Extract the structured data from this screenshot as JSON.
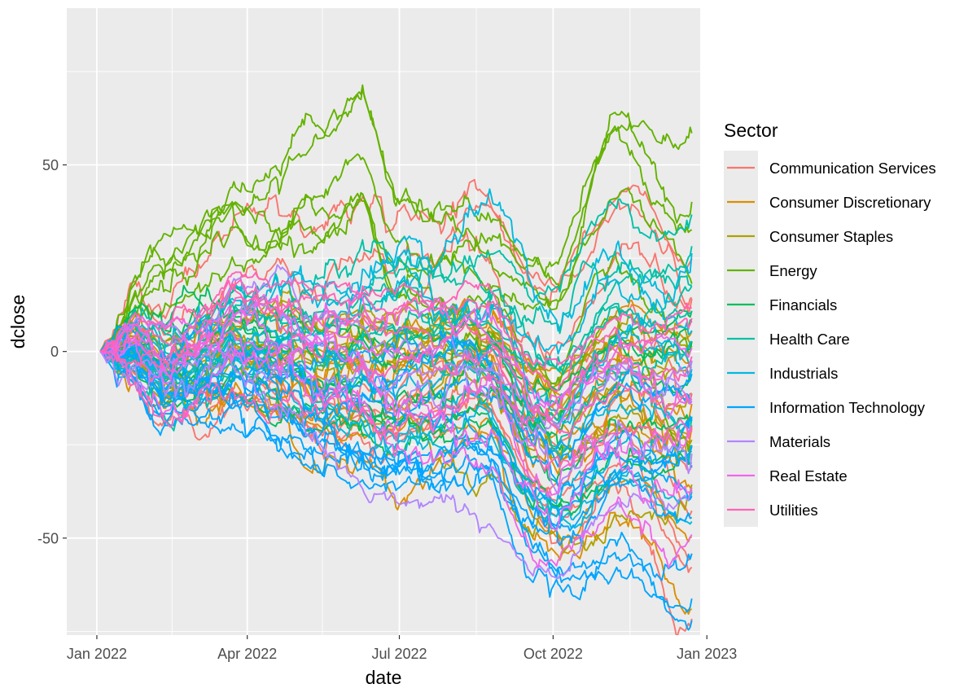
{
  "chart_data": {
    "type": "line",
    "title": "",
    "xlabel": "date",
    "ylabel": "dclose",
    "xlim": [
      "2021-12-14",
      "2022-12-28"
    ],
    "ylim": [
      -76,
      92
    ],
    "x_ticks": [
      {
        "date": "2022-01-01",
        "label": "Jan 2022"
      },
      {
        "date": "2022-04-01",
        "label": "Apr 2022"
      },
      {
        "date": "2022-07-01",
        "label": "Jul 2022"
      },
      {
        "date": "2022-10-01",
        "label": "Oct 2022"
      },
      {
        "date": "2023-01-01",
        "label": "Jan 2023"
      }
    ],
    "x_minor": [
      "2022-02-15",
      "2022-05-16",
      "2022-08-16",
      "2022-11-16"
    ],
    "y_ticks": [
      {
        "value": 50,
        "label": "50"
      },
      {
        "value": 0,
        "label": "0"
      },
      {
        "value": -50,
        "label": "-50"
      }
    ],
    "y_minor": [
      75,
      25,
      -25,
      -75
    ],
    "grid": true,
    "legend": {
      "title": "Sector",
      "position": "right"
    },
    "x_start": "2022-01-03",
    "x_end": "2022-12-23",
    "series": [
      {
        "name": "Communication Services",
        "color": "#F8766D",
        "count": 9,
        "end_values": [
          24,
          22,
          -52,
          -65,
          -44,
          -38,
          -25,
          -3,
          30
        ],
        "anchors": [
          [
            "2022-01-03",
            0
          ],
          [
            "2022-02-15",
            -12
          ],
          [
            "2022-04-01",
            -20
          ],
          [
            "2022-05-15",
            -35
          ],
          [
            "2022-07-01",
            -38
          ],
          [
            "2022-08-15",
            -25
          ],
          [
            "2022-10-01",
            -48
          ],
          [
            "2022-11-15",
            -30
          ],
          [
            "2022-12-23",
            -55
          ]
        ]
      },
      {
        "name": "Consumer Discretionary",
        "color": "#DB8E00",
        "count": 8,
        "end_values": [
          -62,
          -45,
          -30,
          -20,
          -12,
          -5,
          5,
          10
        ],
        "anchors": [
          [
            "2022-01-03",
            0
          ],
          [
            "2022-02-15",
            -14
          ],
          [
            "2022-04-01",
            -18
          ],
          [
            "2022-05-15",
            -30
          ],
          [
            "2022-07-01",
            -35
          ],
          [
            "2022-08-15",
            -20
          ],
          [
            "2022-10-01",
            -40
          ],
          [
            "2022-11-15",
            -24
          ],
          [
            "2022-12-23",
            -35
          ]
        ]
      },
      {
        "name": "Consumer Staples",
        "color": "#AEA200",
        "count": 7,
        "end_values": [
          -28,
          -18,
          -10,
          -2,
          3,
          8,
          10
        ],
        "anchors": [
          [
            "2022-01-03",
            0
          ],
          [
            "2022-02-15",
            -4
          ],
          [
            "2022-04-01",
            -5
          ],
          [
            "2022-05-15",
            -10
          ],
          [
            "2022-07-01",
            -9
          ],
          [
            "2022-08-15",
            -3
          ],
          [
            "2022-10-01",
            -14
          ],
          [
            "2022-11-15",
            -4
          ],
          [
            "2022-12-23",
            -6
          ]
        ]
      },
      {
        "name": "Energy",
        "color": "#64B200",
        "count": 6,
        "end_values": [
          65,
          50,
          42,
          10,
          -20,
          24
        ],
        "anchors": [
          [
            "2022-01-03",
            0
          ],
          [
            "2022-02-15",
            20
          ],
          [
            "2022-04-01",
            30
          ],
          [
            "2022-05-15",
            40
          ],
          [
            "2022-06-08",
            50
          ],
          [
            "2022-07-01",
            30
          ],
          [
            "2022-08-15",
            35
          ],
          [
            "2022-10-01",
            25
          ],
          [
            "2022-11-10",
            60
          ],
          [
            "2022-12-23",
            45
          ]
        ]
      },
      {
        "name": "Financials",
        "color": "#00BD5C",
        "count": 7,
        "end_values": [
          15,
          8,
          0,
          -10,
          -18,
          -25,
          20
        ],
        "anchors": [
          [
            "2022-01-03",
            0
          ],
          [
            "2022-02-15",
            -4
          ],
          [
            "2022-04-01",
            -2
          ],
          [
            "2022-05-15",
            -10
          ],
          [
            "2022-07-01",
            -16
          ],
          [
            "2022-08-15",
            -8
          ],
          [
            "2022-10-01",
            -20
          ],
          [
            "2022-11-15",
            -6
          ],
          [
            "2022-12-23",
            -4
          ]
        ]
      },
      {
        "name": "Health Care",
        "color": "#00C1A7",
        "count": 7,
        "end_values": [
          42,
          33,
          22,
          18,
          5,
          -8,
          28
        ],
        "anchors": [
          [
            "2022-01-03",
            0
          ],
          [
            "2022-02-15",
            -2
          ],
          [
            "2022-04-01",
            4
          ],
          [
            "2022-05-15",
            2
          ],
          [
            "2022-07-01",
            6
          ],
          [
            "2022-08-15",
            8
          ],
          [
            "2022-10-01",
            -2
          ],
          [
            "2022-11-15",
            14
          ],
          [
            "2022-12-23",
            18
          ]
        ]
      },
      {
        "name": "Industrials",
        "color": "#00BADE",
        "count": 8,
        "end_values": [
          36,
          14,
          0,
          -12,
          -20,
          -30,
          -40,
          10
        ],
        "anchors": [
          [
            "2022-01-03",
            0
          ],
          [
            "2022-02-15",
            -6
          ],
          [
            "2022-04-01",
            -2
          ],
          [
            "2022-05-15",
            -10
          ],
          [
            "2022-07-01",
            -16
          ],
          [
            "2022-08-15",
            -8
          ],
          [
            "2022-10-01",
            -22
          ],
          [
            "2022-11-15",
            -6
          ],
          [
            "2022-12-23",
            -5
          ]
        ]
      },
      {
        "name": "Information Technology",
        "color": "#00A6FF",
        "count": 10,
        "end_values": [
          -64,
          -56,
          -48,
          -38,
          -30,
          -20,
          -14,
          -8,
          2,
          -25
        ],
        "anchors": [
          [
            "2022-01-03",
            0
          ],
          [
            "2022-02-15",
            -16
          ],
          [
            "2022-04-01",
            -20
          ],
          [
            "2022-05-15",
            -32
          ],
          [
            "2022-07-01",
            -38
          ],
          [
            "2022-08-15",
            -25
          ],
          [
            "2022-10-01",
            -44
          ],
          [
            "2022-11-15",
            -30
          ],
          [
            "2022-12-23",
            -35
          ]
        ]
      },
      {
        "name": "Materials",
        "color": "#B385FF",
        "count": 4,
        "end_values": [
          -18,
          -6,
          4,
          -30
        ],
        "anchors": [
          [
            "2022-01-03",
            0
          ],
          [
            "2022-02-15",
            -2
          ],
          [
            "2022-04-01",
            2
          ],
          [
            "2022-05-15",
            -8
          ],
          [
            "2022-07-01",
            -16
          ],
          [
            "2022-08-15",
            -8
          ],
          [
            "2022-10-01",
            -20
          ],
          [
            "2022-11-15",
            -6
          ],
          [
            "2022-12-23",
            -10
          ]
        ]
      },
      {
        "name": "Real Estate",
        "color": "#EF67EB",
        "count": 5,
        "end_values": [
          -40,
          -28,
          -16,
          -6,
          6
        ],
        "anchors": [
          [
            "2022-01-03",
            0
          ],
          [
            "2022-02-15",
            -8
          ],
          [
            "2022-04-01",
            -6
          ],
          [
            "2022-05-15",
            -14
          ],
          [
            "2022-07-01",
            -20
          ],
          [
            "2022-08-15",
            -12
          ],
          [
            "2022-10-01",
            -34
          ],
          [
            "2022-11-15",
            -20
          ],
          [
            "2022-12-23",
            -18
          ]
        ]
      },
      {
        "name": "Utilities",
        "color": "#FF63B6",
        "count": 5,
        "end_values": [
          16,
          6,
          -2,
          -10,
          20
        ],
        "anchors": [
          [
            "2022-01-03",
            0
          ],
          [
            "2022-02-15",
            -2
          ],
          [
            "2022-04-01",
            8
          ],
          [
            "2022-05-15",
            6
          ],
          [
            "2022-07-01",
            2
          ],
          [
            "2022-08-15",
            8
          ],
          [
            "2022-10-01",
            -6
          ],
          [
            "2022-11-15",
            4
          ],
          [
            "2022-12-23",
            6
          ]
        ]
      }
    ]
  }
}
